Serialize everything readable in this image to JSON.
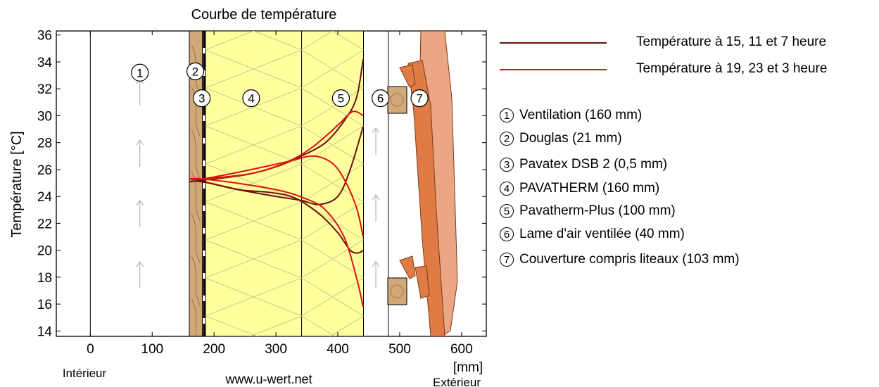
{
  "title": "Courbe de température",
  "source_url": "www.u-wert.net",
  "x_axis": {
    "unit_label": "[mm]",
    "inside_label": "Intérieur",
    "outside_label": "Extérieur"
  },
  "y_axis": {
    "label": "Température [°C]"
  },
  "legend": {
    "series": [
      {
        "label": "Température à 15, 11 et 7 heure",
        "color": "#6b0f0f"
      },
      {
        "label": "Température à 19, 23 et 3 heure",
        "color": "#e01010"
      }
    ]
  },
  "layers": [
    {
      "num": "1",
      "label": "Ventilation (160 mm)"
    },
    {
      "num": "2",
      "label": "Douglas (21 mm)"
    },
    {
      "num": "3",
      "label": "Pavatex DSB 2 (0,5 mm)"
    },
    {
      "num": "4",
      "label": "PAVATHERM (160 mm)"
    },
    {
      "num": "5",
      "label": "Pavatherm-Plus (100 mm)"
    },
    {
      "num": "6",
      "label": "Lame d'air ventilée (40 mm)"
    },
    {
      "num": "7",
      "label": "Couverture compris liteaux (103 mm)"
    }
  ],
  "colors": {
    "wood": "#d2a878",
    "insulation": "#ffff9e",
    "tile": "#e07b45",
    "tile_light": "#eba683"
  },
  "chart_data": {
    "type": "line",
    "title": "Courbe de température",
    "xlabel": "[mm]",
    "ylabel": "Température [°C]",
    "xlim": [
      -55,
      640
    ],
    "ylim": [
      13.6,
      36.3
    ],
    "x_ticks": [
      0,
      100,
      200,
      300,
      400,
      500,
      600
    ],
    "y_ticks": [
      14,
      16,
      18,
      20,
      22,
      24,
      26,
      28,
      30,
      32,
      34,
      36
    ],
    "layer_bounds": [
      0,
      160,
      181,
      181.5,
      341.5,
      441.5,
      481.5,
      584.5
    ],
    "series": [
      {
        "name": "Température à 15, 11 et 7 heure",
        "color": "#6b0f0f",
        "x": [
          160,
          181,
          250,
          300,
          341,
          380,
          410,
          430,
          441
        ],
        "y": [
          25.1,
          25.2,
          25.6,
          26.2,
          27.0,
          28.0,
          29.6,
          31.3,
          34.2
        ]
      },
      {
        "name": "Température à 15, 11 et 7 heure",
        "color": "#6b0f0f",
        "x": [
          160,
          181,
          240,
          300,
          341,
          370,
          400,
          420,
          441
        ],
        "y": [
          25.1,
          25.1,
          24.5,
          24.0,
          23.7,
          23.4,
          24.0,
          26.0,
          29.2
        ]
      },
      {
        "name": "Température à 15, 11 et 7 heure",
        "color": "#6b0f0f",
        "x": [
          160,
          181,
          240,
          290,
          330,
          370,
          400,
          420,
          433,
          441
        ],
        "y": [
          25.1,
          25.1,
          24.5,
          24.3,
          23.9,
          22.7,
          21.3,
          20.0,
          19.8,
          20.0
        ]
      },
      {
        "name": "Température à 19, 23 et 3 heure",
        "color": "#e01010",
        "x": [
          160,
          181,
          260,
          320,
          360,
          400,
          420,
          430,
          441
        ],
        "y": [
          25.3,
          25.3,
          25.7,
          26.6,
          27.7,
          29.3,
          30.2,
          30.3,
          30.0
        ]
      },
      {
        "name": "Température à 19, 23 et 3 heure",
        "color": "#e01010",
        "x": [
          160,
          181,
          250,
          320,
          360,
          390,
          410,
          430,
          441
        ],
        "y": [
          25.3,
          25.3,
          25.9,
          26.6,
          27.0,
          26.5,
          25.3,
          23.2,
          21.0
        ]
      },
      {
        "name": "Température à 19, 23 et 3 heure",
        "color": "#e01010",
        "x": [
          160,
          181,
          250,
          310,
          350,
          380,
          410,
          430,
          441
        ],
        "y": [
          25.3,
          25.3,
          24.9,
          24.4,
          23.8,
          23.0,
          21.0,
          18.0,
          15.8
        ]
      }
    ]
  }
}
